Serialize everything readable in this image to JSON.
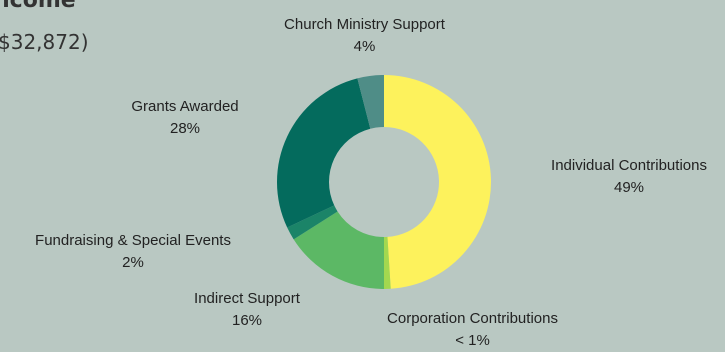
{
  "header": {
    "title": "ncome",
    "subtitle": "$32,872)"
  },
  "chart_data": {
    "type": "pie",
    "style": "donut",
    "categories": [
      "Individual Contributions",
      "Corporation Contributions",
      "Indirect Support",
      "Fundraising & Special Events",
      "Grants Awarded",
      "Church Ministry Support"
    ],
    "values": [
      49,
      1,
      16,
      2,
      28,
      4
    ],
    "value_labels": [
      "49%",
      "< 1%",
      "16%",
      "2%",
      "28%",
      "4%"
    ],
    "colors": [
      "#fdf25c",
      "#a3d84f",
      "#5cb865",
      "#1b8468",
      "#046b5d",
      "#4f8d87"
    ]
  }
}
